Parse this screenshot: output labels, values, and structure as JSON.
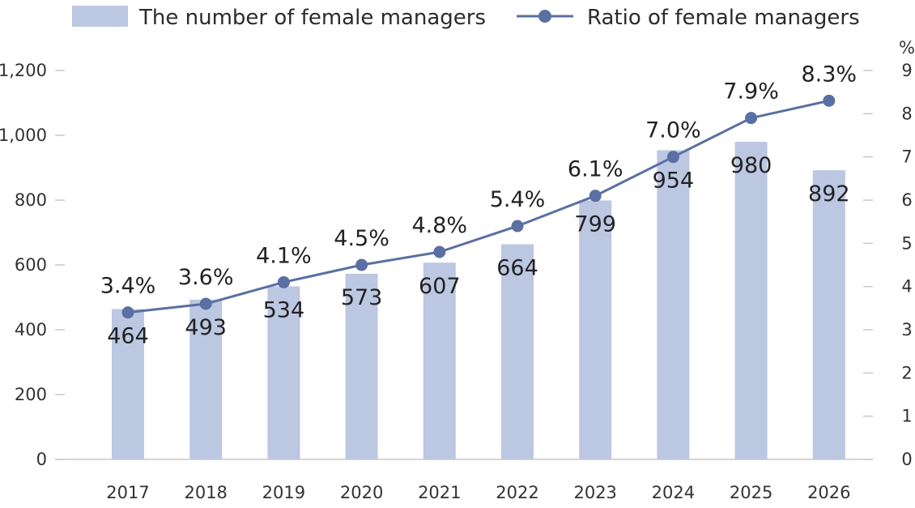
{
  "chart_data": {
    "type": "bar",
    "categories": [
      "2017",
      "2018",
      "2019",
      "2020",
      "2021",
      "2022",
      "2023",
      "2024",
      "2025",
      "2026"
    ],
    "series": [
      {
        "name": "The number of female managers",
        "type": "bar",
        "axis": "left",
        "values": [
          464,
          493,
          534,
          573,
          607,
          664,
          799,
          954,
          980,
          892
        ],
        "labels": [
          "464",
          "493",
          "534",
          "573",
          "607",
          "664",
          "799",
          "954",
          "980",
          "892"
        ]
      },
      {
        "name": "Ratio of female managers",
        "type": "line",
        "axis": "right",
        "values": [
          3.4,
          3.6,
          4.1,
          4.5,
          4.8,
          5.4,
          6.1,
          7.0,
          7.9,
          8.3
        ],
        "labels": [
          "3.4%",
          "3.6%",
          "4.1%",
          "4.5%",
          "4.8%",
          "5.4%",
          "6.1%",
          "7.0%",
          "7.9%",
          "8.3%"
        ]
      }
    ],
    "ylim_left": [
      0,
      1200
    ],
    "yticks_left": [
      "0",
      "200",
      "400",
      "600",
      "800",
      "1,000",
      "1,200"
    ],
    "ylim_right": [
      0,
      9
    ],
    "yticks_right": [
      "0",
      "1",
      "2",
      "3",
      "4",
      "5",
      "6",
      "7",
      "8",
      "9"
    ],
    "ylabel_right": "%",
    "legend_position": "top",
    "grid": false,
    "colors": {
      "bar": "#bcc7e2",
      "line": "#5a6fa3",
      "axis": "#c8c8c8"
    }
  }
}
